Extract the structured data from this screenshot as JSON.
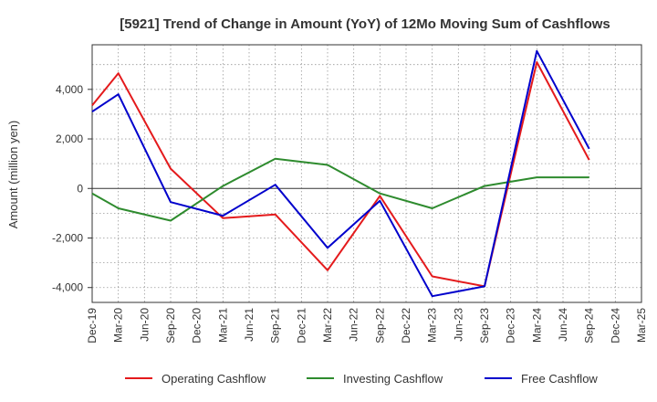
{
  "chart_data": {
    "type": "line",
    "title": "[5921]  Trend of Change in Amount (YoY) of 12Mo Moving Sum of Cashflows",
    "xlabel": "",
    "ylabel": "Amount (million yen)",
    "ylim": [
      -4600,
      5800
    ],
    "yticks": [
      -4000,
      -2000,
      0,
      2000,
      4000
    ],
    "ytick_labels": [
      "-4,000",
      "-2,000",
      "0",
      "2,000",
      "4,000"
    ],
    "categories": [
      "Dec-19",
      "Mar-20",
      "Jun-20",
      "Sep-20",
      "Dec-20",
      "Mar-21",
      "Jun-21",
      "Sep-21",
      "Dec-21",
      "Mar-22",
      "Jun-22",
      "Sep-22",
      "Dec-22",
      "Mar-23",
      "Jun-23",
      "Sep-23",
      "Dec-23",
      "Mar-24",
      "Jun-24",
      "Sep-24",
      "Dec-24",
      "Mar-25"
    ],
    "grid": true,
    "legend_position": "bottom",
    "series": [
      {
        "name": "Operating Cashflow",
        "color": "#e41a1c",
        "points": [
          [
            0,
            3350
          ],
          [
            1,
            4650
          ],
          [
            3,
            800
          ],
          [
            5,
            -1200
          ],
          [
            7,
            -1050
          ],
          [
            9,
            -3300
          ],
          [
            11,
            -300
          ],
          [
            13,
            -3550
          ],
          [
            15,
            -3950
          ],
          [
            17,
            5100
          ],
          [
            19,
            1150
          ]
        ]
      },
      {
        "name": "Investing Cashflow",
        "color": "#2e8b2e",
        "points": [
          [
            0,
            -200
          ],
          [
            1,
            -800
          ],
          [
            3,
            -1300
          ],
          [
            5,
            100
          ],
          [
            7,
            1200
          ],
          [
            9,
            950
          ],
          [
            11,
            -200
          ],
          [
            13,
            -800
          ],
          [
            15,
            100
          ],
          [
            17,
            450
          ],
          [
            19,
            450
          ]
        ]
      },
      {
        "name": "Free Cashflow",
        "color": "#0000cc",
        "points": [
          [
            0,
            3100
          ],
          [
            1,
            3800
          ],
          [
            3,
            -550
          ],
          [
            5,
            -1100
          ],
          [
            7,
            150
          ],
          [
            9,
            -2400
          ],
          [
            11,
            -500
          ],
          [
            13,
            -4350
          ],
          [
            15,
            -3950
          ],
          [
            17,
            5550
          ],
          [
            19,
            1600
          ]
        ]
      }
    ]
  }
}
